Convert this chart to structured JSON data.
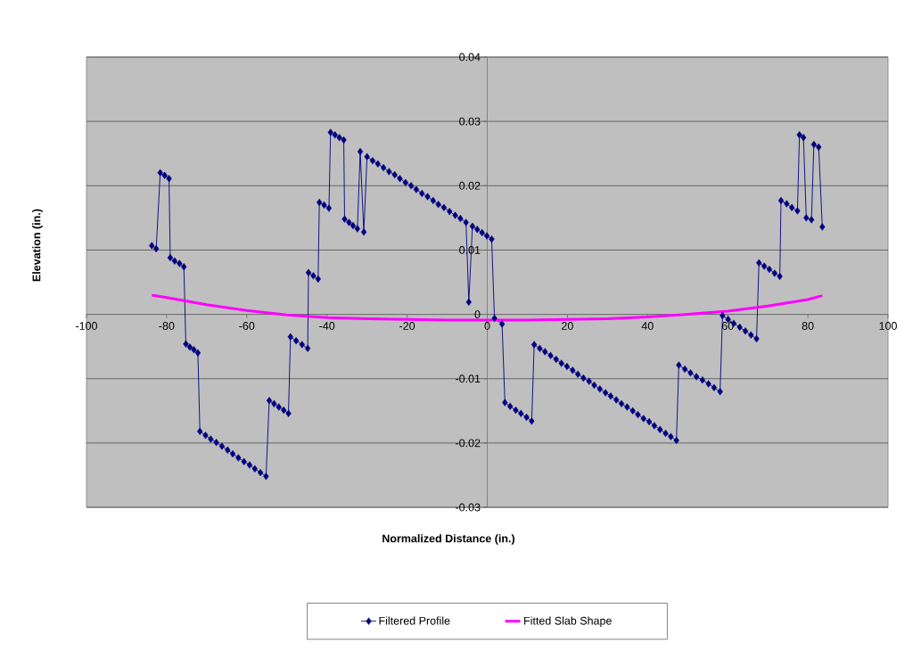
{
  "chart_data": {
    "type": "line",
    "xlabel": "Normalized Distance (in.)",
    "ylabel": "Elevation (in.)",
    "xlim": [
      -100,
      100
    ],
    "xticks": [
      -100,
      -80,
      -60,
      -40,
      -20,
      0,
      20,
      40,
      60,
      80,
      100
    ],
    "ylim": [
      -0.03,
      0.04
    ],
    "yticks": [
      -0.03,
      -0.02,
      -0.01,
      0,
      0.01,
      0.02,
      0.03,
      0.04
    ],
    "grid": "y",
    "legend": "bottom",
    "series": [
      {
        "name": "Filtered Profile",
        "color": "#000080",
        "marker": "diamond",
        "x": [
          -83.7,
          -82.6,
          -81.6,
          -80.5,
          -79.4,
          -79.1,
          -78.0,
          -76.8,
          -75.7,
          -75.2,
          -74.2,
          -73.2,
          -72.2,
          -71.7,
          -70.3,
          -69.0,
          -67.6,
          -66.2,
          -64.8,
          -63.5,
          -62.1,
          -60.7,
          -59.3,
          -58.0,
          -56.6,
          -55.2,
          -54.4,
          -53.2,
          -52.0,
          -50.8,
          -49.6,
          -49.1,
          -47.7,
          -46.2,
          -44.8,
          -44.6,
          -43.4,
          -42.2,
          -41.9,
          -40.7,
          -39.5,
          -39.1,
          -38.0,
          -36.9,
          -35.8,
          -35.6,
          -34.5,
          -33.5,
          -32.4,
          -31.7,
          -30.8,
          -30.0,
          -28.6,
          -27.3,
          -25.9,
          -24.5,
          -23.1,
          -21.8,
          -20.4,
          -19.0,
          -17.7,
          -16.3,
          -14.9,
          -13.5,
          -12.2,
          -10.8,
          -9.4,
          -8.0,
          -6.7,
          -5.3,
          -4.6,
          -3.7,
          -2.5,
          -1.3,
          -0.1,
          1.1,
          1.8,
          3.7,
          4.4,
          5.7,
          7.1,
          8.4,
          9.8,
          11.1,
          11.7,
          13.1,
          14.4,
          15.8,
          17.2,
          18.5,
          19.9,
          21.3,
          22.6,
          24.0,
          25.4,
          26.7,
          28.1,
          29.5,
          30.8,
          32.2,
          33.5,
          34.9,
          36.3,
          37.6,
          39.0,
          40.4,
          41.7,
          43.1,
          44.5,
          45.8,
          47.2,
          47.8,
          49.3,
          50.7,
          52.2,
          53.7,
          55.2,
          56.6,
          58.1,
          58.7,
          60.1,
          61.5,
          63.0,
          64.4,
          65.8,
          67.2,
          67.8,
          69.1,
          70.4,
          71.7,
          73.0,
          73.3,
          74.7,
          76.0,
          77.4,
          77.9,
          78.9,
          79.6,
          80.9,
          81.5,
          82.7,
          83.6
        ],
        "values": [
          0.0107,
          0.0102,
          0.022,
          0.0216,
          0.0211,
          0.0088,
          0.0083,
          0.0079,
          0.0074,
          -0.0046,
          -0.0051,
          -0.0055,
          -0.006,
          -0.0182,
          -0.0188,
          -0.0194,
          -0.0199,
          -0.0205,
          -0.0211,
          -0.0217,
          -0.0223,
          -0.0229,
          -0.0234,
          -0.024,
          -0.0246,
          -0.0252,
          -0.0134,
          -0.0139,
          -0.0144,
          -0.0149,
          -0.0154,
          -0.0035,
          -0.0041,
          -0.0047,
          -0.0053,
          0.0065,
          0.006,
          0.0055,
          0.0174,
          0.017,
          0.0165,
          0.0283,
          0.0279,
          0.0275,
          0.0271,
          0.0148,
          0.0143,
          0.0138,
          0.0133,
          0.0253,
          0.0128,
          0.0245,
          0.0239,
          0.0234,
          0.0228,
          0.0222,
          0.0217,
          0.0211,
          0.0205,
          0.02,
          0.0194,
          0.0188,
          0.0183,
          0.0177,
          0.0171,
          0.0166,
          0.016,
          0.0154,
          0.0149,
          0.0143,
          0.0019,
          0.0137,
          0.0132,
          0.0127,
          0.0122,
          0.0117,
          -0.0006,
          -0.0015,
          -0.0137,
          -0.0143,
          -0.0149,
          -0.0154,
          -0.016,
          -0.0166,
          -0.0047,
          -0.0053,
          -0.0058,
          -0.0064,
          -0.007,
          -0.0076,
          -0.0081,
          -0.0087,
          -0.0093,
          -0.0099,
          -0.0104,
          -0.011,
          -0.0116,
          -0.0122,
          -0.0127,
          -0.0133,
          -0.0139,
          -0.0144,
          -0.015,
          -0.0156,
          -0.0162,
          -0.0167,
          -0.0173,
          -0.0179,
          -0.0185,
          -0.019,
          -0.0196,
          -0.0079,
          -0.0085,
          -0.0091,
          -0.0097,
          -0.0102,
          -0.0108,
          -0.0114,
          -0.012,
          -0.0002,
          -0.0008,
          -0.0014,
          -0.002,
          -0.0026,
          -0.0032,
          -0.0038,
          0.008,
          0.0075,
          0.007,
          0.0064,
          0.0059,
          0.0177,
          0.0172,
          0.0166,
          0.0161,
          0.0279,
          0.0275,
          0.015,
          0.0147,
          0.0264,
          0.026,
          0.0136
        ]
      },
      {
        "name": "Fitted Slab Shape",
        "color": "#ff00ff",
        "marker": "none",
        "x": [
          -83.7,
          -80,
          -70,
          -60,
          -50,
          -40,
          -30,
          -20,
          -10,
          0,
          10,
          20,
          30,
          40,
          50,
          60,
          70,
          80,
          83.6
        ],
        "values": [
          0.003,
          0.0026,
          0.0015,
          0.0006,
          -0.0001,
          -0.0005,
          -0.0007,
          -0.0008,
          -0.0009,
          -0.0009,
          -0.0009,
          -0.0008,
          -0.0007,
          -0.0004,
          0.0,
          0.0005,
          0.0013,
          0.0023,
          0.0029
        ]
      }
    ]
  }
}
